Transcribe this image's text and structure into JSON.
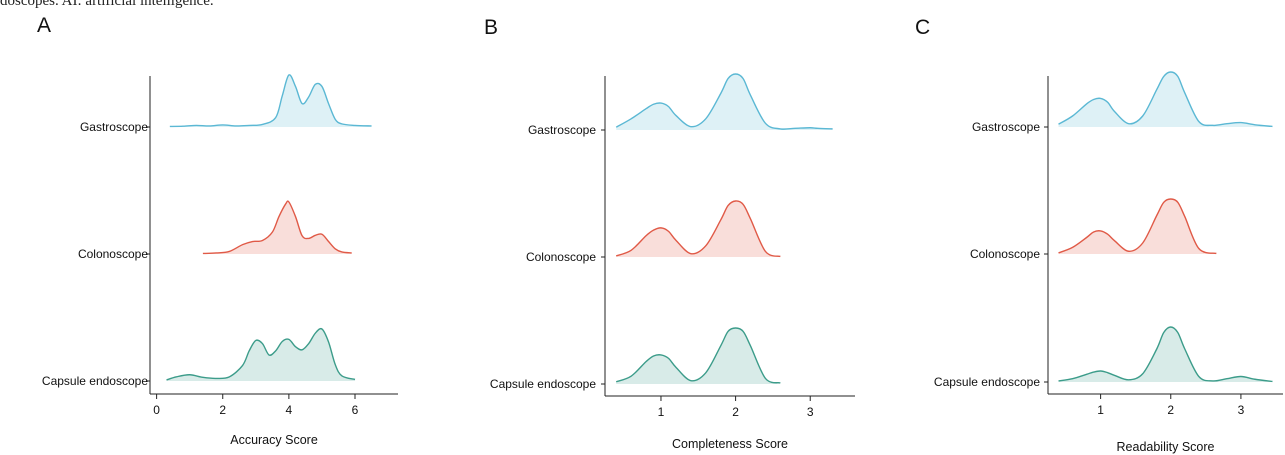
{
  "caption": "doscopes. AI: artificial intelligence.",
  "chart_data": [
    {
      "type": "ridgeline",
      "panel": "A",
      "xlabel": "Accuracy Score",
      "categories": [
        "Gastroscope",
        "Colonoscope",
        "Capsule endoscope"
      ],
      "xlim": [
        -0.2,
        7.3
      ],
      "xticks": [
        0,
        2,
        4,
        6
      ],
      "series": [
        {
          "name": "Gastroscope",
          "color": "#5bb8d4",
          "x": [
            0.4,
            0.8,
            1.2,
            1.6,
            2.0,
            2.4,
            2.8,
            3.2,
            3.6,
            3.8,
            4.0,
            4.2,
            4.4,
            4.6,
            4.8,
            5.0,
            5.2,
            5.4,
            5.6,
            6.0,
            6.5
          ],
          "density": [
            0.01,
            0.015,
            0.03,
            0.02,
            0.04,
            0.02,
            0.03,
            0.05,
            0.18,
            0.6,
            1.0,
            0.78,
            0.45,
            0.58,
            0.82,
            0.78,
            0.45,
            0.15,
            0.06,
            0.03,
            0.02
          ]
        },
        {
          "name": "Colonoscope",
          "color": "#e05a47",
          "x": [
            1.4,
            1.8,
            2.2,
            2.6,
            2.9,
            3.2,
            3.5,
            3.7,
            3.9,
            4.0,
            4.2,
            4.4,
            4.6,
            4.8,
            5.0,
            5.2,
            5.4,
            5.6,
            5.9
          ],
          "density": [
            0.01,
            0.02,
            0.05,
            0.18,
            0.24,
            0.26,
            0.42,
            0.72,
            0.96,
            1.0,
            0.72,
            0.35,
            0.3,
            0.36,
            0.38,
            0.24,
            0.1,
            0.04,
            0.02
          ]
        },
        {
          "name": "Capsule endoscope",
          "color": "#3c9c8a",
          "x": [
            0.3,
            0.6,
            1.0,
            1.4,
            1.8,
            2.2,
            2.6,
            2.8,
            3.0,
            3.2,
            3.4,
            3.6,
            3.8,
            4.0,
            4.2,
            4.4,
            4.6,
            4.8,
            5.0,
            5.2,
            5.4,
            5.6,
            6.0
          ],
          "density": [
            0.02,
            0.08,
            0.12,
            0.07,
            0.05,
            0.08,
            0.3,
            0.58,
            0.78,
            0.72,
            0.5,
            0.58,
            0.76,
            0.8,
            0.66,
            0.6,
            0.72,
            0.92,
            1.0,
            0.75,
            0.32,
            0.1,
            0.03
          ]
        }
      ]
    },
    {
      "type": "ridgeline",
      "panel": "B",
      "xlabel": "Completeness Score",
      "categories": [
        "Gastroscope",
        "Colonoscope",
        "Capsule endoscope"
      ],
      "xlim": [
        0.25,
        3.6
      ],
      "xticks": [
        1,
        2,
        3
      ],
      "series": [
        {
          "name": "Gastroscope",
          "color": "#5bb8d4",
          "x": [
            0.4,
            0.6,
            0.8,
            0.9,
            1.0,
            1.1,
            1.2,
            1.4,
            1.6,
            1.8,
            1.9,
            2.0,
            2.1,
            2.2,
            2.4,
            2.6,
            2.8,
            3.0,
            3.1,
            3.3
          ],
          "density": [
            0.05,
            0.2,
            0.38,
            0.46,
            0.48,
            0.42,
            0.26,
            0.06,
            0.2,
            0.65,
            0.92,
            1.0,
            0.92,
            0.62,
            0.12,
            0.02,
            0.03,
            0.04,
            0.03,
            0.02
          ]
        },
        {
          "name": "Colonoscope",
          "color": "#e05a47",
          "x": [
            0.4,
            0.6,
            0.8,
            0.9,
            1.0,
            1.1,
            1.2,
            1.4,
            1.6,
            1.8,
            1.9,
            2.0,
            2.1,
            2.2,
            2.4,
            2.6
          ],
          "density": [
            0.02,
            0.12,
            0.38,
            0.48,
            0.52,
            0.46,
            0.3,
            0.06,
            0.2,
            0.66,
            0.92,
            1.0,
            0.94,
            0.68,
            0.1,
            0.01
          ]
        },
        {
          "name": "Capsule endoscope",
          "color": "#3c9c8a",
          "x": [
            0.4,
            0.6,
            0.8,
            0.9,
            1.0,
            1.1,
            1.2,
            1.4,
            1.6,
            1.8,
            1.9,
            2.0,
            2.1,
            2.2,
            2.4,
            2.6
          ],
          "density": [
            0.04,
            0.14,
            0.4,
            0.5,
            0.52,
            0.46,
            0.3,
            0.06,
            0.2,
            0.68,
            0.94,
            1.0,
            0.94,
            0.68,
            0.1,
            0.02
          ]
        }
      ]
    },
    {
      "type": "ridgeline",
      "panel": "C",
      "xlabel": "Readability Score",
      "categories": [
        "Gastroscope",
        "Colonoscope",
        "Capsule endoscope"
      ],
      "xlim": [
        0.25,
        3.6
      ],
      "xticks": [
        1,
        2,
        3
      ],
      "series": [
        {
          "name": "Gastroscope",
          "color": "#5bb8d4",
          "x": [
            0.4,
            0.6,
            0.8,
            0.9,
            1.0,
            1.1,
            1.2,
            1.4,
            1.6,
            1.8,
            1.9,
            2.0,
            2.1,
            2.2,
            2.4,
            2.6,
            2.8,
            3.0,
            3.2,
            3.45
          ],
          "density": [
            0.05,
            0.2,
            0.42,
            0.5,
            0.52,
            0.45,
            0.28,
            0.06,
            0.2,
            0.68,
            0.92,
            1.0,
            0.92,
            0.62,
            0.1,
            0.03,
            0.06,
            0.08,
            0.04,
            0.01
          ]
        },
        {
          "name": "Colonoscope",
          "color": "#e05a47",
          "x": [
            0.4,
            0.6,
            0.8,
            0.9,
            1.0,
            1.1,
            1.2,
            1.4,
            1.6,
            1.8,
            1.9,
            2.0,
            2.1,
            2.2,
            2.4,
            2.65
          ],
          "density": [
            0.02,
            0.12,
            0.3,
            0.4,
            0.42,
            0.36,
            0.24,
            0.05,
            0.2,
            0.7,
            0.94,
            1.0,
            0.94,
            0.68,
            0.1,
            0.01
          ]
        },
        {
          "name": "Capsule endoscope",
          "color": "#3c9c8a",
          "x": [
            0.4,
            0.6,
            0.8,
            0.9,
            1.0,
            1.1,
            1.2,
            1.4,
            1.6,
            1.8,
            1.9,
            2.0,
            2.1,
            2.2,
            2.4,
            2.6,
            2.8,
            3.0,
            3.2,
            3.45
          ],
          "density": [
            0.02,
            0.06,
            0.14,
            0.18,
            0.2,
            0.17,
            0.12,
            0.04,
            0.15,
            0.6,
            0.9,
            1.0,
            0.9,
            0.6,
            0.1,
            0.02,
            0.06,
            0.1,
            0.05,
            0.01
          ]
        }
      ]
    }
  ]
}
